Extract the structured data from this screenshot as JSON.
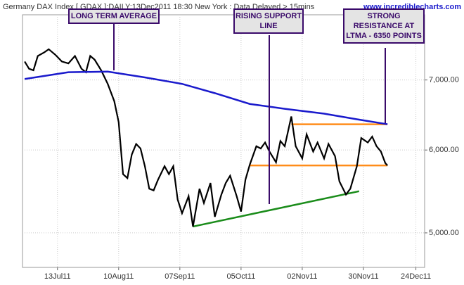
{
  "chart_data": {
    "type": "line",
    "title": "Germany DAX Index [ GDAX ]:DAILY:13Dec2011 18:30 New York : Data Delayed > 15mins",
    "subtitle": "www.incrediblecharts.com",
    "log_scale": true,
    "grid": true,
    "xlim": [
      "2011-06-27",
      "2011-12-28"
    ],
    "ylim": [
      4634,
      8080
    ],
    "xticks": [
      {
        "value": "2011-07-13",
        "label": "13Jul11"
      },
      {
        "value": "2011-08-10",
        "label": "10Aug11"
      },
      {
        "value": "2011-09-07",
        "label": "07Sep11"
      },
      {
        "value": "2011-10-05",
        "label": "05Oct11"
      },
      {
        "value": "2011-11-02",
        "label": "02Nov11"
      },
      {
        "value": "2011-11-30",
        "label": "30Nov11"
      },
      {
        "value": "2011-12-24",
        "label": "24Dec11"
      }
    ],
    "yticks": [
      {
        "value": 5000,
        "label": "5,000.00"
      },
      {
        "value": 6000,
        "label": "6,000.00"
      },
      {
        "value": 7000,
        "label": "7,000.00"
      }
    ],
    "series": [
      {
        "name": "DAX",
        "color": "#000000",
        "x": [
          "2011-06-28",
          "2011-06-30",
          "2011-07-02",
          "2011-07-04",
          "2011-07-07",
          "2011-07-09",
          "2011-07-12",
          "2011-07-15",
          "2011-07-18",
          "2011-07-21",
          "2011-07-24",
          "2011-07-26",
          "2011-07-28",
          "2011-07-30",
          "2011-08-02",
          "2011-08-05",
          "2011-08-08",
          "2011-08-10",
          "2011-08-12",
          "2011-08-14",
          "2011-08-16",
          "2011-08-18",
          "2011-08-20",
          "2011-08-22",
          "2011-08-24",
          "2011-08-26",
          "2011-08-28",
          "2011-08-31",
          "2011-09-02",
          "2011-09-04",
          "2011-09-06",
          "2011-09-08",
          "2011-09-11",
          "2011-09-13",
          "2011-09-16",
          "2011-09-18",
          "2011-09-21",
          "2011-09-23",
          "2011-09-26",
          "2011-09-28",
          "2011-09-30",
          "2011-10-03",
          "2011-10-05",
          "2011-10-07",
          "2011-10-09",
          "2011-10-12",
          "2011-10-14",
          "2011-10-16",
          "2011-10-18",
          "2011-10-21",
          "2011-10-23",
          "2011-10-25",
          "2011-10-28",
          "2011-10-30",
          "2011-11-02",
          "2011-11-04",
          "2011-11-07",
          "2011-11-09",
          "2011-11-12",
          "2011-11-14",
          "2011-11-17",
          "2011-11-19",
          "2011-11-22",
          "2011-11-24",
          "2011-11-27",
          "2011-11-29",
          "2011-12-02",
          "2011-12-04",
          "2011-12-06",
          "2011-12-08",
          "2011-12-10",
          "2011-12-11"
        ],
        "values": [
          7290,
          7175,
          7150,
          7380,
          7440,
          7490,
          7400,
          7290,
          7260,
          7380,
          7175,
          7120,
          7380,
          7320,
          7150,
          6940,
          6680,
          6380,
          5690,
          5640,
          5940,
          6080,
          6020,
          5790,
          5510,
          5490,
          5620,
          5790,
          5690,
          5790,
          5380,
          5220,
          5420,
          5070,
          5510,
          5340,
          5580,
          5180,
          5440,
          5580,
          5670,
          5420,
          5240,
          5620,
          5810,
          6050,
          6020,
          6100,
          5980,
          5840,
          6120,
          6050,
          6460,
          6050,
          5890,
          6210,
          5980,
          6100,
          5890,
          6080,
          5920,
          5600,
          5440,
          5510,
          5790,
          6160,
          6100,
          6180,
          6050,
          5980,
          5830,
          5800
        ]
      },
      {
        "name": "Long Term Moving Average",
        "color": "#1a1acc",
        "x": [
          "2011-06-28",
          "2011-07-18",
          "2011-08-05",
          "2011-08-22",
          "2011-09-08",
          "2011-09-23",
          "2011-10-09",
          "2011-10-25",
          "2011-11-12",
          "2011-11-27",
          "2011-12-11"
        ],
        "values": [
          7015,
          7120,
          7130,
          7040,
          6940,
          6800,
          6640,
          6570,
          6500,
          6420,
          6350
        ]
      }
    ],
    "lines": [
      {
        "color": "#ff8c1a",
        "x": [
          "2011-10-28",
          "2011-12-11"
        ],
        "values": [
          6350,
          6350
        ]
      },
      {
        "color": "#ff8c1a",
        "x": [
          "2011-10-09",
          "2011-12-11"
        ],
        "values": [
          5800,
          5800
        ]
      },
      {
        "color": "#1a8c1a",
        "x": [
          "2011-09-13",
          "2011-11-28"
        ],
        "values": [
          5070,
          5480
        ]
      }
    ],
    "annotations": [
      {
        "lines": [
          "LONG TERM AVERAGE"
        ]
      },
      {
        "lines": [
          "RISING SUPPORT",
          "LINE"
        ]
      },
      {
        "lines": [
          "STRONG",
          "RESISTANCE AT",
          "LTMA - 6350 POINTS"
        ]
      }
    ]
  }
}
